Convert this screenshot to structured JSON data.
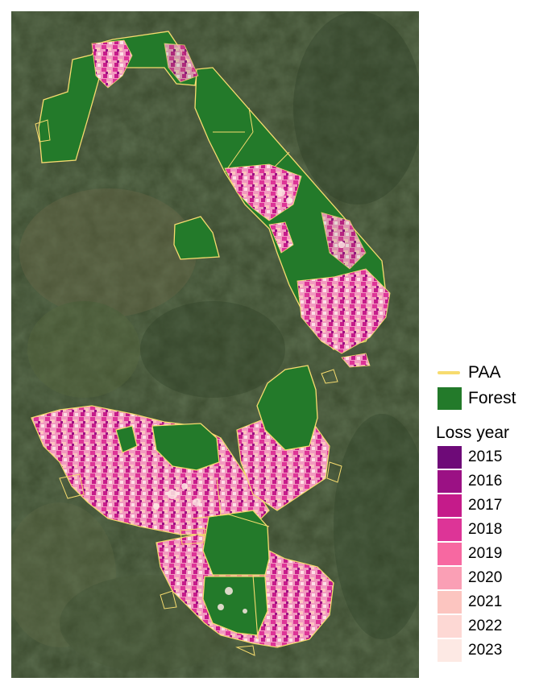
{
  "colors": {
    "paa": "#f7dc6f",
    "forest": "#237a2a",
    "background_satellite": "#3a4a2c"
  },
  "legend": {
    "paa_label": "PAA",
    "forest_label": "Forest",
    "loss_title": "Loss year",
    "years": [
      {
        "label": "2015",
        "color": "#6e0a78"
      },
      {
        "label": "2016",
        "color": "#9b1184"
      },
      {
        "label": "2017",
        "color": "#c51b8a"
      },
      {
        "label": "2018",
        "color": "#dd3497"
      },
      {
        "label": "2019",
        "color": "#f768a1"
      },
      {
        "label": "2020",
        "color": "#fa9fb5"
      },
      {
        "label": "2021",
        "color": "#fcc5c0"
      },
      {
        "label": "2022",
        "color": "#fdd8d4"
      },
      {
        "label": "2023",
        "color": "#fde9e4"
      }
    ]
  }
}
